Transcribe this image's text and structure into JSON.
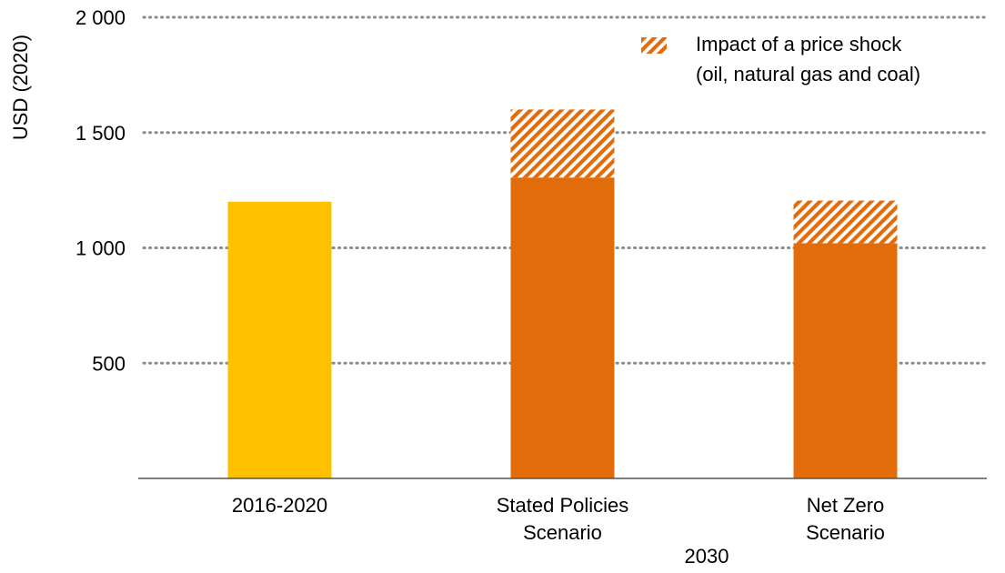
{
  "chart_data": {
    "type": "bar",
    "stacked": true,
    "ylabel": "USD (2020)",
    "ylim": [
      0,
      2000
    ],
    "yticks": [
      500,
      1000,
      1500,
      2000
    ],
    "ytick_labels": [
      "500",
      "1 000",
      "1 500",
      "2 000"
    ],
    "grid": "horizontal dotted",
    "categories": [
      "2016-2020",
      "Stated Policies Scenario",
      "Net Zero Scenario"
    ],
    "category_lines": [
      [
        "2016-2020"
      ],
      [
        "Stated Policies",
        "Scenario"
      ],
      [
        "Net Zero",
        "Scenario"
      ]
    ],
    "group_label": "2030",
    "bars": [
      {
        "category": "2016-2020",
        "base": 1200,
        "shock": 0,
        "color": "#FFC000"
      },
      {
        "category": "Stated Policies Scenario",
        "base": 1305,
        "shock": 295,
        "color": "#E36C0A"
      },
      {
        "category": "Net Zero Scenario",
        "base": 1020,
        "shock": 185,
        "color": "#E36C0A"
      }
    ],
    "legend": {
      "position": "top-right",
      "lines": [
        "Impact of a price shock",
        "(oil, natural gas and coal)"
      ],
      "pattern": "diagonal-hatch",
      "color": "#E36C0A"
    }
  }
}
